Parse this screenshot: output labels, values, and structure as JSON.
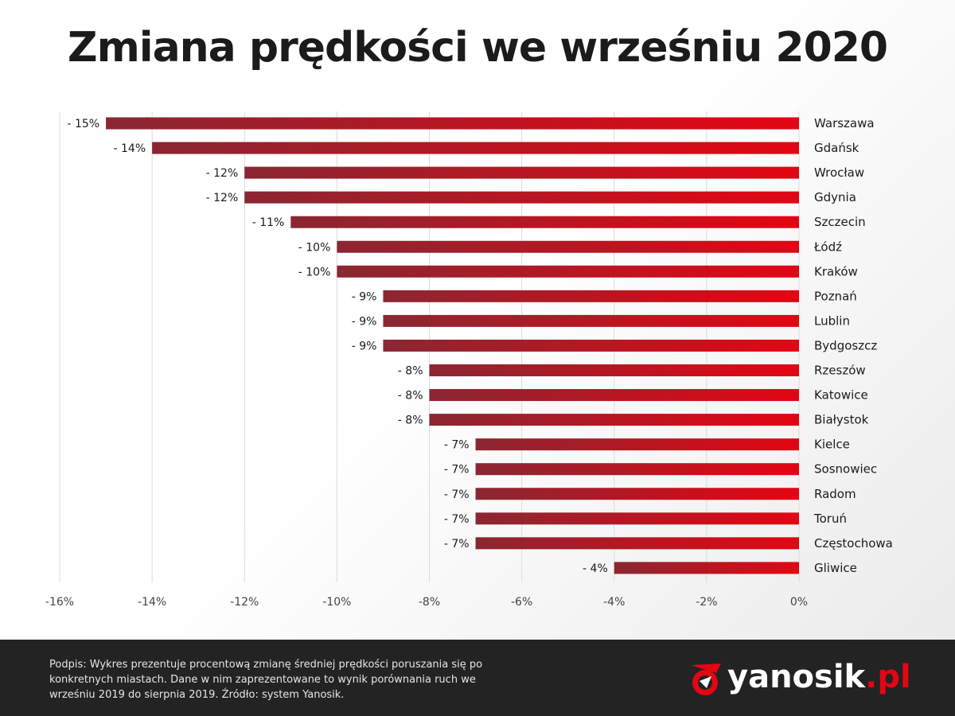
{
  "title": "Zmiana prędkości we wrześniu 2020",
  "colors": {
    "bar_start": "#8a2732",
    "bar_end": "#e30613",
    "grid": "#dcdcdc",
    "text": "#1b1b1b",
    "accent": "#e30613"
  },
  "chart_data": {
    "type": "bar",
    "orientation": "horizontal",
    "title": "Zmiana prędkości we wrześniu 2020",
    "xlabel": "",
    "ylabel": "",
    "xlim": [
      -16,
      0
    ],
    "x_ticks": [
      -16,
      -14,
      -12,
      -10,
      -8,
      -6,
      -4,
      -2,
      0
    ],
    "x_tick_labels": [
      "-16%",
      "-14%",
      "-12%",
      "-10%",
      "-8%",
      "-6%",
      "-4%",
      "-2%",
      "0%"
    ],
    "categories": [
      "Warszawa",
      "Gdańsk",
      "Wrocław",
      "Gdynia",
      "Szczecin",
      "Łódź",
      "Kraków",
      "Poznań",
      "Lublin",
      "Bydgoszcz",
      "Rzeszów",
      "Katowice",
      "Białystok",
      "Kielce",
      "Sosnowiec",
      "Radom",
      "Toruń",
      "Częstochowa",
      "Gliwice"
    ],
    "values": [
      -15,
      -14,
      -12,
      -12,
      -11,
      -10,
      -10,
      -9,
      -9,
      -9,
      -8,
      -8,
      -8,
      -7,
      -7,
      -7,
      -7,
      -7,
      -4
    ],
    "data_labels": [
      "- 15%",
      "- 14%",
      "- 12%",
      "- 12%",
      "- 11%",
      "- 10%",
      "- 10%",
      "- 9%",
      "- 9%",
      "- 9%",
      "- 8%",
      "- 8%",
      "- 8%",
      "- 7%",
      "- 7%",
      "- 7%",
      "- 7%",
      "- 7%",
      "- 4%"
    ],
    "grid": true
  },
  "footer": {
    "caption": "Podpis: Wykres prezentuje procentową zmianę średniej prędkości poruszania się po konkretnych miastach. Dane w nim zaprezentowane to wynik porównania ruch we wrześniu 2019 do sierpnia 2019. Źródło: system Yanosik.",
    "logo_name": "yanosik",
    "logo_tld": ".pl",
    "logo_icon": "yanosik-logo-icon"
  }
}
